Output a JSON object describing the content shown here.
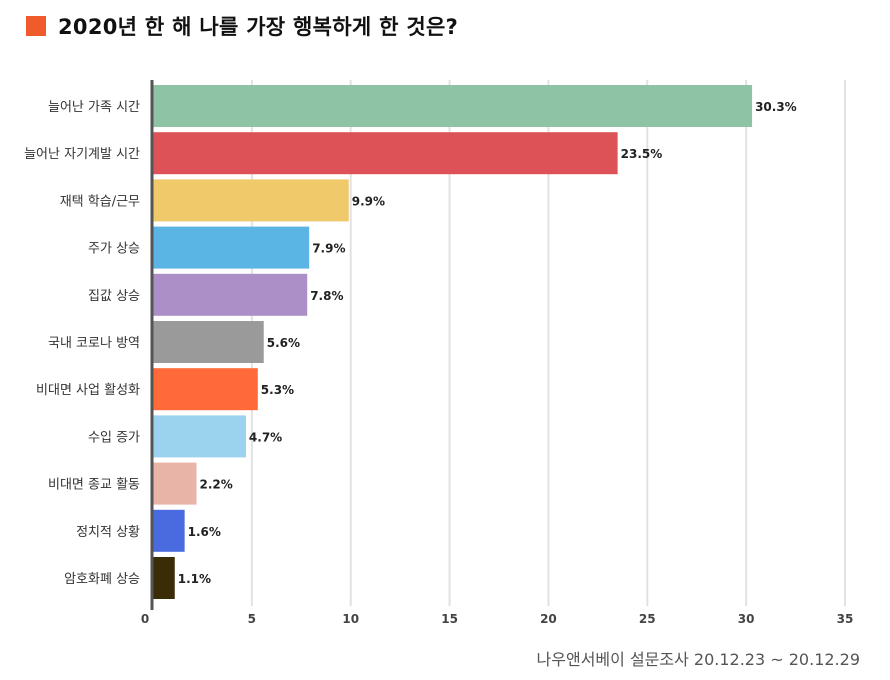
{
  "title": "2020년 한 해 나를 가장 행복하게 한 것은?",
  "source": "나우앤서베이 설문조사 20.12.23 ~ 20.12.29",
  "colors": {
    "title_marker": "#ef5b2a",
    "grid": "#e2e2e2",
    "axis": "#555555"
  },
  "chart_data": {
    "type": "bar",
    "orientation": "horizontal",
    "categories": [
      "늘어난 가족 시간",
      "늘어난 자기계발 시간",
      "재택 학습/근무",
      "주가 상승",
      "집값 상승",
      "국내 코로나 방역",
      "비대면 사업 활성화",
      "수입 증가",
      "비대면 종교 활동",
      "정치적 상황",
      "암호화폐 상승"
    ],
    "values": [
      30.3,
      23.5,
      9.9,
      7.9,
      7.8,
      5.6,
      5.3,
      4.7,
      2.2,
      1.6,
      1.1
    ],
    "value_labels": [
      "30.3%",
      "23.5%",
      "9.9%",
      "7.9%",
      "7.8%",
      "5.6%",
      "5.3%",
      "4.7%",
      "2.2%",
      "1.6%",
      "1.1%"
    ],
    "bar_colors": [
      "#8fc3a6",
      "#dd5257",
      "#f0c96a",
      "#5bb5e4",
      "#ab8fc6",
      "#9a9a9a",
      "#ff6a38",
      "#9bd3ee",
      "#e8b4a8",
      "#4a6ae0",
      "#3b2c08"
    ],
    "xlim": [
      0,
      35
    ],
    "xticks": [
      0,
      5,
      10,
      15,
      20,
      25,
      30,
      35
    ],
    "grid": true,
    "legend": "none"
  }
}
